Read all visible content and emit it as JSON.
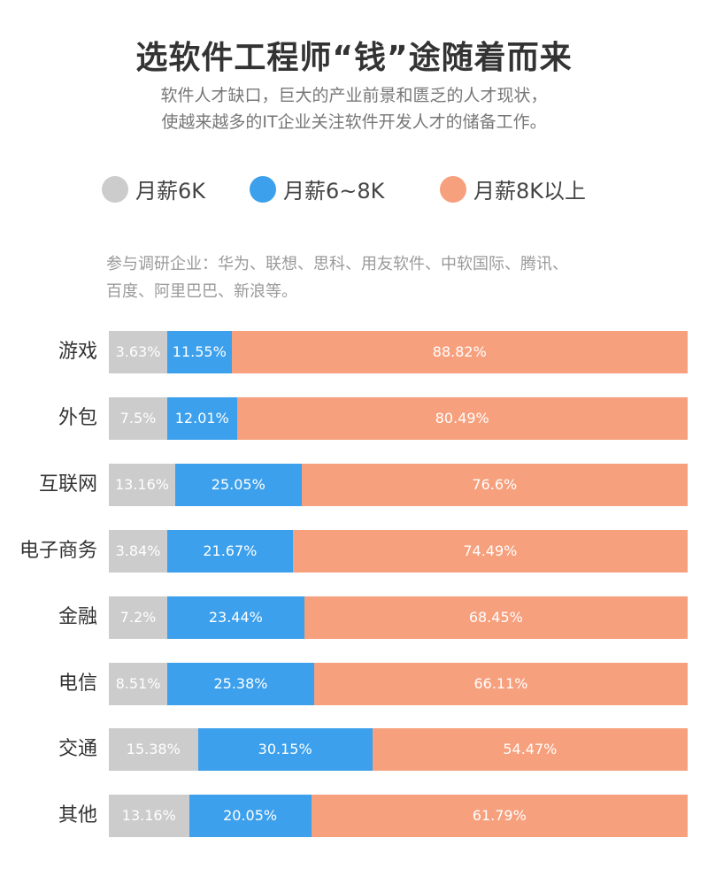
{
  "header": {
    "title": "选软件工程师“钱”途随着而来",
    "subtitle_lines": [
      "软件人才缺口，巨大的产业前景和匮乏的人才现状，",
      "使越来越多的IT企业关注软件开发人才的储备工作。"
    ]
  },
  "note_lines": [
    "参与调研企业：华为、联想、思科、用友软件、中软国际、腾讯、",
    "百度、阿里巴巴、新浪等。"
  ],
  "chart_data": {
    "type": "bar",
    "stacked": true,
    "orientation": "horizontal",
    "legend_position": "top",
    "categories": [
      "游戏",
      "外包",
      "互联网",
      "电子商务",
      "金融",
      "电信",
      "交通",
      "其他"
    ],
    "series": [
      {
        "name": "月薪6K",
        "color": "#cccccc",
        "values": [
          3.63,
          7.5,
          13.16,
          3.84,
          7.2,
          8.51,
          15.38,
          13.16
        ]
      },
      {
        "name": "月薪6~8K",
        "color": "#3ca0ec",
        "values": [
          11.55,
          12.01,
          25.05,
          21.67,
          23.44,
          25.38,
          30.15,
          20.05
        ]
      },
      {
        "name": "月薪8K以上",
        "color": "#f7a07d",
        "values": [
          88.82,
          80.49,
          76.6,
          74.49,
          68.45,
          66.11,
          54.47,
          61.79
        ]
      }
    ],
    "value_suffix": "%"
  }
}
